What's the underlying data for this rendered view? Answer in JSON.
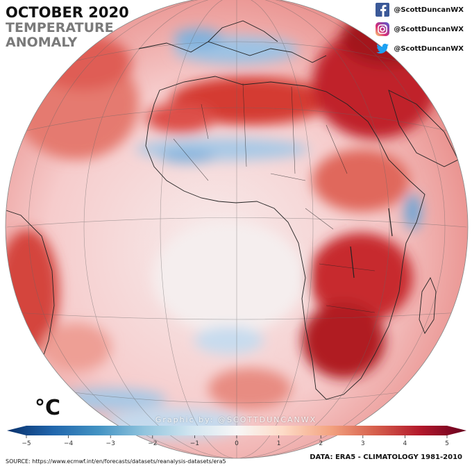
{
  "header": {
    "title": "OCTOBER 2020",
    "subtitle_line1": "TEMPERATURE",
    "subtitle_line2": "ANOMALY"
  },
  "social": [
    {
      "icon": "facebook-icon",
      "handle": "@ScottDuncanWX",
      "color": "#3b5998"
    },
    {
      "icon": "instagram-icon",
      "handle": "@ScottDuncanWX",
      "color": "#c13584"
    },
    {
      "icon": "twitter-icon",
      "handle": "@ScottDuncanWX",
      "color": "#1da1f2"
    }
  ],
  "map": {
    "unit": "°C",
    "credit": "Graphic by: @SCOTTDUNCANWX",
    "colorbar": {
      "min": -5,
      "max": 5,
      "ticks": [
        "−5",
        "−4",
        "−3",
        "−2",
        "−1",
        "0",
        "1",
        "2",
        "3",
        "4",
        "5"
      ],
      "colors": [
        "#08306b",
        "#2166ac",
        "#4393c3",
        "#92c5de",
        "#d1e5f0",
        "#f7f7f7",
        "#fddbc7",
        "#f4a582",
        "#d6604d",
        "#b2182b",
        "#67001f"
      ]
    }
  },
  "footer": {
    "source": "SOURCE: https://www.ecmwf.int/en/forecasts/datasets/reanalysis-datasets/era5",
    "data_note": "DATA: ERA5 - CLIMATOLOGY 1981-2010"
  }
}
